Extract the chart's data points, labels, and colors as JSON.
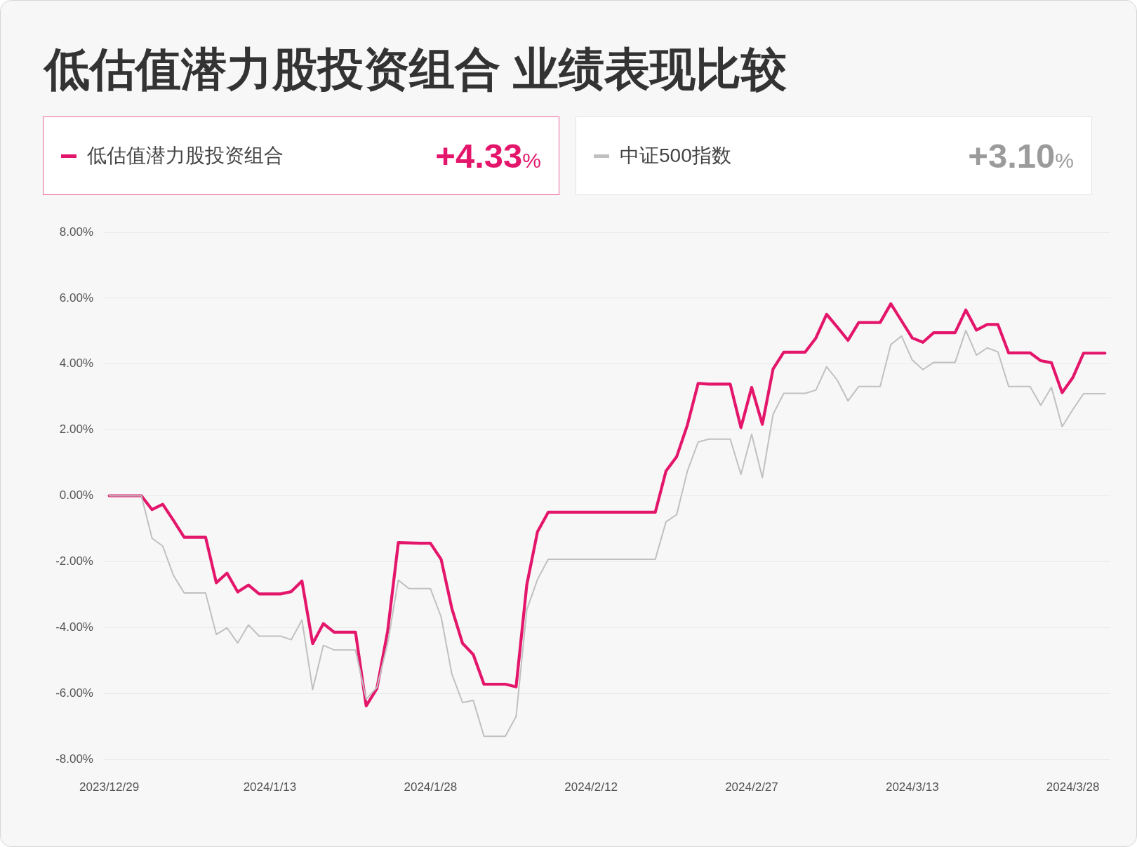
{
  "chart_data": {
    "type": "line",
    "title": "低估值潜力股投资组合 业绩表现比较",
    "x": [
      "2023-12-29",
      "2023-12-30",
      "2023-12-31",
      "2024-01-01",
      "2024-01-02",
      "2024-01-03",
      "2024-01-04",
      "2024-01-05",
      "2024-01-06",
      "2024-01-07",
      "2024-01-08",
      "2024-01-09",
      "2024-01-10",
      "2024-01-11",
      "2024-01-12",
      "2024-01-13",
      "2024-01-14",
      "2024-01-15",
      "2024-01-16",
      "2024-01-17",
      "2024-01-18",
      "2024-01-19",
      "2024-01-20",
      "2024-01-21",
      "2024-01-22",
      "2024-01-23",
      "2024-01-24",
      "2024-01-25",
      "2024-01-26",
      "2024-01-27",
      "2024-01-28",
      "2024-01-29",
      "2024-01-30",
      "2024-01-31",
      "2024-02-01",
      "2024-02-02",
      "2024-02-03",
      "2024-02-04",
      "2024-02-05",
      "2024-02-06",
      "2024-02-07",
      "2024-02-08",
      "2024-02-09",
      "2024-02-10",
      "2024-02-11",
      "2024-02-12",
      "2024-02-13",
      "2024-02-14",
      "2024-02-15",
      "2024-02-16",
      "2024-02-17",
      "2024-02-18",
      "2024-02-19",
      "2024-02-20",
      "2024-02-21",
      "2024-02-22",
      "2024-02-23",
      "2024-02-24",
      "2024-02-25",
      "2024-02-26",
      "2024-02-27",
      "2024-02-28",
      "2024-02-29",
      "2024-03-01",
      "2024-03-02",
      "2024-03-03",
      "2024-03-04",
      "2024-03-05",
      "2024-03-06",
      "2024-03-07",
      "2024-03-08",
      "2024-03-09",
      "2024-03-10",
      "2024-03-11",
      "2024-03-12",
      "2024-03-13",
      "2024-03-14",
      "2024-03-15",
      "2024-03-16",
      "2024-03-17",
      "2024-03-18",
      "2024-03-19",
      "2024-03-20",
      "2024-03-21",
      "2024-03-22",
      "2024-03-23",
      "2024-03-24",
      "2024-03-25",
      "2024-03-26",
      "2024-03-27",
      "2024-03-28",
      "2024-03-29",
      "2024-03-30",
      "2024-03-31"
    ],
    "series": [
      {
        "name": "低估值潜力股投资组合",
        "color": "#e4166b",
        "values": [
          0,
          0,
          0,
          0,
          -0.42,
          -0.26,
          -0.75,
          -1.26,
          -1.26,
          -1.26,
          -2.64,
          -2.35,
          -2.92,
          -2.71,
          -2.98,
          -2.98,
          -2.98,
          -2.91,
          -2.59,
          -4.49,
          -3.88,
          -4.14,
          -4.14,
          -4.14,
          -6.38,
          -5.85,
          -4.12,
          -1.42,
          -1.43,
          -1.44,
          -1.44,
          -1.93,
          -3.42,
          -4.48,
          -4.82,
          -5.72,
          -5.72,
          -5.72,
          -5.8,
          -2.7,
          -1.09,
          -0.5,
          -0.5,
          -0.5,
          -0.5,
          -0.5,
          -0.5,
          -0.5,
          -0.5,
          -0.5,
          -0.5,
          -0.5,
          0.75,
          1.19,
          2.15,
          3.41,
          3.39,
          3.39,
          3.39,
          2.07,
          3.29,
          2.17,
          3.85,
          4.36,
          4.36,
          4.36,
          4.79,
          5.51,
          5.12,
          4.72,
          5.26,
          5.26,
          5.26,
          5.83,
          5.31,
          4.79,
          4.66,
          4.95,
          4.95,
          4.95,
          5.64,
          5.03,
          5.2,
          5.2,
          4.34,
          4.34,
          4.34,
          4.1,
          4.04,
          3.13,
          3.59,
          4.33,
          4.33,
          4.33
        ]
      },
      {
        "name": "中证500指数",
        "color": "#c0c0c0",
        "values": [
          0,
          0,
          0,
          0,
          -1.29,
          -1.53,
          -2.42,
          -2.95,
          -2.95,
          -2.95,
          -4.21,
          -4.01,
          -4.47,
          -3.92,
          -4.26,
          -4.26,
          -4.26,
          -4.37,
          -3.77,
          -5.88,
          -4.54,
          -4.68,
          -4.68,
          -4.68,
          -6.17,
          -5.82,
          -4.49,
          -2.56,
          -2.82,
          -2.82,
          -2.82,
          -3.68,
          -5.41,
          -6.28,
          -6.21,
          -7.3,
          -7.3,
          -7.3,
          -6.7,
          -3.46,
          -2.54,
          -1.93,
          -1.93,
          -1.93,
          -1.93,
          -1.93,
          -1.93,
          -1.93,
          -1.93,
          -1.93,
          -1.93,
          -1.93,
          -0.79,
          -0.57,
          0.75,
          1.63,
          1.72,
          1.72,
          1.72,
          0.65,
          1.87,
          0.55,
          2.47,
          3.11,
          3.11,
          3.11,
          3.21,
          3.92,
          3.51,
          2.88,
          3.32,
          3.32,
          3.32,
          4.59,
          4.85,
          4.12,
          3.83,
          4.05,
          4.05,
          4.05,
          5.02,
          4.27,
          4.49,
          4.37,
          3.32,
          3.32,
          3.32,
          2.75,
          3.29,
          2.1,
          2.62,
          3.1,
          3.1,
          3.1
        ]
      }
    ],
    "xlim": [
      "2023-12-28T12:00",
      "2024-03-31T12:00"
    ],
    "xticks": [
      {
        "value": "2023-12-29",
        "label": "2023/12/29"
      },
      {
        "value": "2024-01-13",
        "label": "2024/1/13"
      },
      {
        "value": "2024-01-28",
        "label": "2024/1/28"
      },
      {
        "value": "2024-02-12",
        "label": "2024/2/12"
      },
      {
        "value": "2024-02-27",
        "label": "2024/2/27"
      },
      {
        "value": "2024-03-13",
        "label": "2024/3/13"
      },
      {
        "value": "2024-03-28",
        "label": "2024/3/28"
      }
    ],
    "ylim": [
      -8,
      8
    ],
    "yticks": [
      {
        "value": -8,
        "label": "-8.00%"
      },
      {
        "value": -6,
        "label": "-6.00%"
      },
      {
        "value": -4,
        "label": "-4.00%"
      },
      {
        "value": -2,
        "label": "-2.00%"
      },
      {
        "value": 0,
        "label": "0.00%"
      },
      {
        "value": 2,
        "label": "2.00%"
      },
      {
        "value": 4,
        "label": "4.00%"
      },
      {
        "value": 6,
        "label": "6.00%"
      },
      {
        "value": 8,
        "label": "8.00%"
      }
    ],
    "grid": "y",
    "legend": "top",
    "marker": "none",
    "annotations": [
      "+4.33%",
      "+3.10%"
    ]
  }
}
